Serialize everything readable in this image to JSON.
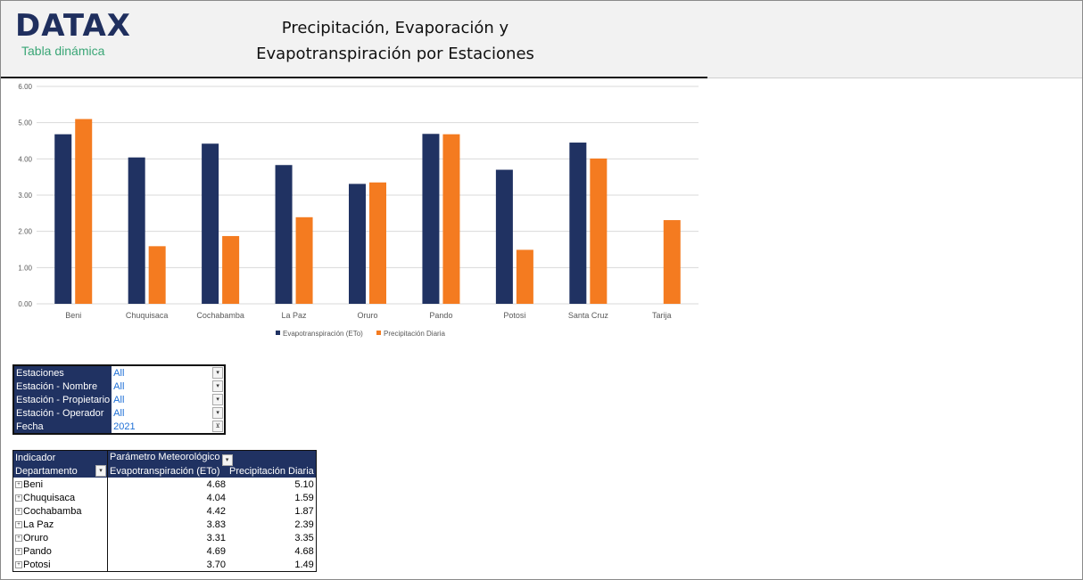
{
  "header": {
    "logo": "DATAX",
    "subtitle": "Tabla dinámica",
    "title_line1": "Precipitación, Evaporación y",
    "title_line2": "Evapotranspiración por Estaciones"
  },
  "chart_data": {
    "type": "bar",
    "categories": [
      "Beni",
      "Chuquisaca",
      "Cochabamba",
      "La Paz",
      "Oruro",
      "Pando",
      "Potosi",
      "Santa Cruz",
      "Tarija"
    ],
    "series": [
      {
        "name": "Evapotranspiración (ETo)",
        "color": "#203262",
        "values": [
          4.68,
          4.04,
          4.42,
          3.83,
          3.31,
          4.69,
          3.7,
          4.45,
          null
        ]
      },
      {
        "name": "Precipitación Diaria",
        "color": "#f47b20",
        "values": [
          5.1,
          1.59,
          1.87,
          2.39,
          3.35,
          4.68,
          1.49,
          4.01,
          2.31
        ]
      }
    ],
    "yticks": [
      "0.00",
      "1.00",
      "2.00",
      "3.00",
      "4.00",
      "5.00",
      "6.00"
    ],
    "ylim": [
      0,
      6
    ],
    "grid": true,
    "legend": "bottom"
  },
  "filters": [
    {
      "label": "Estaciones",
      "value": "All",
      "icon": "dropdown-icon"
    },
    {
      "label": "Estación - Nombre",
      "value": "All",
      "icon": "dropdown-icon"
    },
    {
      "label": "Estación - Propietario",
      "value": "All",
      "icon": "dropdown-icon"
    },
    {
      "label": "Estación - Operador",
      "value": "All",
      "icon": "dropdown-icon"
    },
    {
      "label": "Fecha",
      "value": "2021",
      "icon": "filter-icon"
    }
  ],
  "pivot": {
    "row_header1": "Indicador",
    "col_field": "Parámetro Meteorológico",
    "row_header2": "Departamento",
    "col1": "Evapotranspiración (ETo)",
    "col2": "Precipitación Diaria",
    "rows": [
      {
        "name": "Beni",
        "eto": "4.68",
        "prec": "5.10"
      },
      {
        "name": "Chuquisaca",
        "eto": "4.04",
        "prec": "1.59"
      },
      {
        "name": "Cochabamba",
        "eto": "4.42",
        "prec": "1.87"
      },
      {
        "name": "La Paz",
        "eto": "3.83",
        "prec": "2.39"
      },
      {
        "name": "Oruro",
        "eto": "3.31",
        "prec": "3.35"
      },
      {
        "name": "Pando",
        "eto": "4.69",
        "prec": "4.68"
      },
      {
        "name": "Potosi",
        "eto": "3.70",
        "prec": "1.49"
      }
    ]
  }
}
